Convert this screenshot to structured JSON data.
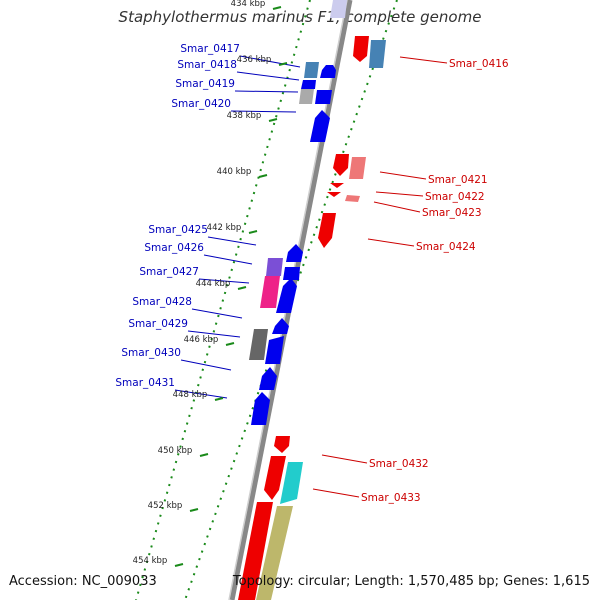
{
  "title": "Staphylothermus marinus F1, complete genome",
  "accession": "Accession: NC_009033",
  "summary": "Topology: circular; Length: 1,570,485 bp; Genes: 1,615",
  "colors": {
    "forward_label": "#0000bb",
    "reverse_label": "#cc0000",
    "backbone": "#888888",
    "ticks": "#1a8a1a"
  },
  "kbp_ticks": [
    "434 kbp",
    "436 kbp",
    "438 kbp",
    "440 kbp",
    "442 kbp",
    "444 kbp",
    "446 kbp",
    "448 kbp",
    "450 kbp",
    "452 kbp",
    "454 kbp"
  ],
  "forward_genes": [
    "Smar_0417",
    "Smar_0418",
    "Smar_0419",
    "Smar_0420",
    "Smar_0425",
    "Smar_0426",
    "Smar_0427",
    "Smar_0428",
    "Smar_0429",
    "Smar_0430",
    "Smar_0431"
  ],
  "reverse_genes": [
    "Smar_0416",
    "Smar_0421",
    "Smar_0422",
    "Smar_0423",
    "Smar_0424",
    "Smar_0432",
    "Smar_0433"
  ]
}
